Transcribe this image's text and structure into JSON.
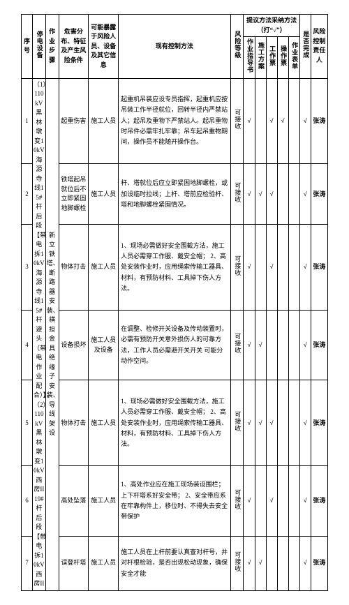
{
  "header": {
    "seq": "序号",
    "equip": "停电设备",
    "step": "作业步骤",
    "hazard": "危害分布、特征及产生风险条件",
    "exposure": "可能暴露于风险人员、设备及其它信息",
    "control": "现有控制方法",
    "level": "风险等级",
    "method_group": "提议方法采纳方法（打“√”）",
    "m1": "作业指导书",
    "m2": "施工方案",
    "m3": "工作票",
    "m4": "操作票",
    "m5": "作业表单",
    "done": "是否完成",
    "resp": "风险控制责任人"
  },
  "equip_block": "（1）110kV黑林墩变10kV海源寺线15#杆后段【带电拆10kV海源寺线15#杆避头（带电作业配合）】；（2）110kV黑林墩变10kV西房II19#杆后段【带电拆10kV西房II",
  "step_block": "新立铁塔、断路器安装、横担金具绝缘子安装、导线架设",
  "rows": [
    {
      "seq": "1",
      "hazard": "起重伤害",
      "exposure": "施工人员",
      "control": "起重机吊装应设专员指挥，起重机应按吊装工作半径就位，回转半径内严禁站人；起吊及重物下严禁站人。起吊重物时吊件必需牢扎牢靠；吊车起吊重物期间，操作员不能随开操作台。",
      "level": "可接收",
      "m": [
        "√",
        "",
        "√",
        "√",
        "",
        "√"
      ],
      "resp": "张涛"
    },
    {
      "seq": "2",
      "hazard": "铁塔起吊就位后不立即紧固地脚螺栓",
      "exposure": "施工人员",
      "control": "杆、塔就位后应立即紧固地脚螺栓，或加设临时拉线；上杆、塔前应检验杆、塔和地脚螺栓紧固情况。",
      "level": "可接收",
      "m": [
        "√",
        "√",
        "√",
        "",
        "",
        "√"
      ],
      "resp": "张涛"
    },
    {
      "seq": "3",
      "hazard": "物体打击",
      "exposure": "施工人员",
      "control": "1、现场必需做好安全围截方法，施工人员必需穿工作服、戴安全帽；\n2、高处安装作业时，应用绳索传输工器具、材料，有预防材料、工具掉下伤人方法。",
      "level": "可接收",
      "m": [
        "√",
        "",
        "√",
        "",
        "",
        "√"
      ],
      "resp": "张涛"
    },
    {
      "seq": "4",
      "hazard": "设备损坏",
      "exposure": "施工人员及设备",
      "control": "在调整、检修开关设备及传动装置时，必需有预防开关意外损伤人的可靠方法，工作人员必需避开关开关 可能分动作空间。",
      "level": "可接收",
      "m": [
        "√",
        "√",
        "",
        "",
        "",
        "√"
      ],
      "resp": "张涛"
    },
    {
      "seq": "5",
      "hazard": "物体打击",
      "exposure": "施工人员",
      "control": "1、现场必需做好安全围截方法，施工人员必需穿工作服、戴安全帽；\n2、高处安装作业时，应用绳索传输工器具、材料，有预防材料、工具掉下伤人方法。",
      "level": "可接收",
      "m": [
        "√",
        "√",
        "√",
        "",
        "",
        "√"
      ],
      "resp": "张涛"
    },
    {
      "seq": "6",
      "hazard": "高处坠落",
      "exposure": "施工人员",
      "control": "1、高处作业应在施工现场装设围栏；上下杆塔系好安全带；\n2、安全带应系在牢靠构件上，移位时、不得失去安全带保护",
      "level": "可接收",
      "m": [
        "√",
        "",
        "√",
        "",
        "",
        "√"
      ],
      "resp": "张涛"
    },
    {
      "seq": "7",
      "hazard": "误登杆塔",
      "exposure": "施工人员",
      "control": "施工人员在上杆前要认真查对杆号，并对杆根检验，是否出现松动现象，确保安全才能",
      "level": "可接收",
      "m": [
        "√",
        "√",
        "",
        "",
        "",
        "√"
      ],
      "resp": "张涛"
    }
  ]
}
